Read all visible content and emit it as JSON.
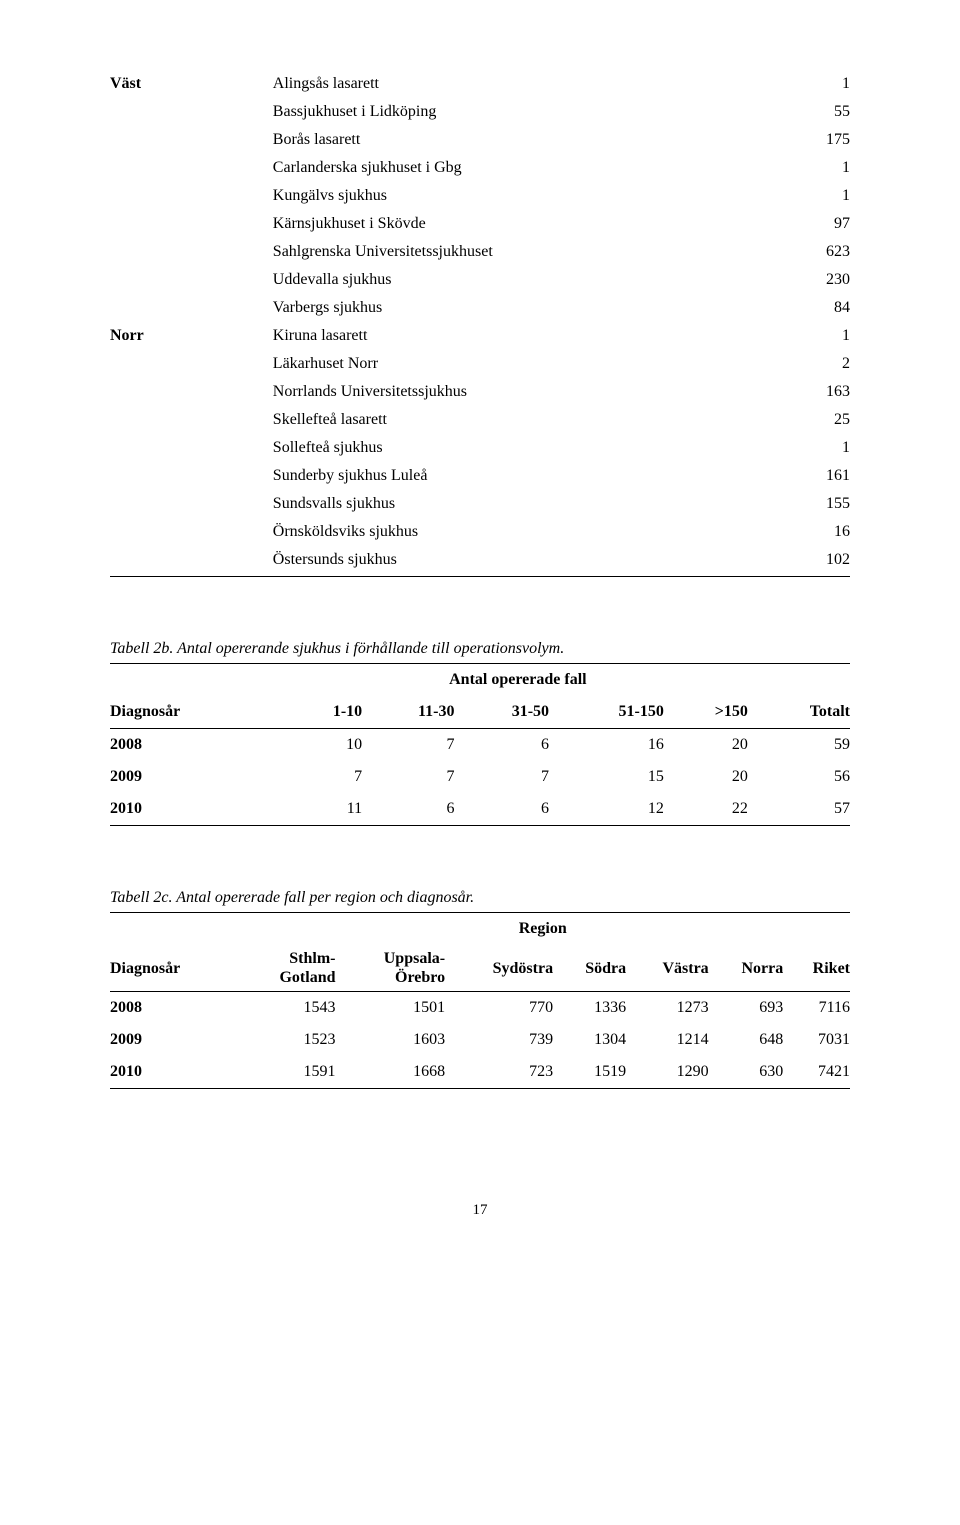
{
  "table1": {
    "regions": [
      "Väst",
      "Norr"
    ],
    "rows": [
      {
        "region": "Väst",
        "hospital": "Alingsås lasarett",
        "value": "1"
      },
      {
        "region": "",
        "hospital": "Bassjukhuset i Lidköping",
        "value": "55"
      },
      {
        "region": "",
        "hospital": "Borås lasarett",
        "value": "175"
      },
      {
        "region": "",
        "hospital": "Carlanderska sjukhuset i Gbg",
        "value": "1"
      },
      {
        "region": "",
        "hospital": "Kungälvs sjukhus",
        "value": "1"
      },
      {
        "region": "",
        "hospital": "Kärnsjukhuset i Skövde",
        "value": "97"
      },
      {
        "region": "",
        "hospital": "Sahlgrenska Universitetssjukhuset",
        "value": "623"
      },
      {
        "region": "",
        "hospital": "Uddevalla sjukhus",
        "value": "230"
      },
      {
        "region": "",
        "hospital": "Varbergs sjukhus",
        "value": "84"
      },
      {
        "region": "Norr",
        "hospital": "Kiruna lasarett",
        "value": "1"
      },
      {
        "region": "",
        "hospital": "Läkarhuset Norr",
        "value": "2"
      },
      {
        "region": "",
        "hospital": "Norrlands Universitetssjukhus",
        "value": "163"
      },
      {
        "region": "",
        "hospital": "Skellefteå lasarett",
        "value": "25"
      },
      {
        "region": "",
        "hospital": "Sollefteå sjukhus",
        "value": "1"
      },
      {
        "region": "",
        "hospital": "Sunderby sjukhus Luleå",
        "value": "161"
      },
      {
        "region": "",
        "hospital": "Sundsvalls sjukhus",
        "value": "155"
      },
      {
        "region": "",
        "hospital": "Örnsköldsviks sjukhus",
        "value": "16"
      },
      {
        "region": "",
        "hospital": "Östersunds sjukhus",
        "value": "102"
      }
    ]
  },
  "table2": {
    "caption": "Tabell 2b. Antal opererande sjukhus i förhållande till operationsvolym.",
    "group_header": "Antal opererade fall",
    "columns": [
      "Diagnosår",
      "1-10",
      "11-30",
      "31-50",
      "51-150",
      ">150",
      "Totalt"
    ],
    "rows": [
      [
        "2008",
        "10",
        "7",
        "6",
        "16",
        "20",
        "59"
      ],
      [
        "2009",
        "7",
        "7",
        "7",
        "15",
        "20",
        "56"
      ],
      [
        "2010",
        "11",
        "6",
        "6",
        "12",
        "22",
        "57"
      ]
    ]
  },
  "table3": {
    "caption": "Tabell 2c. Antal opererade fall per region och diagnosår.",
    "group_header": "Region",
    "columns": [
      "Diagnosår",
      "Sthlm-\nGotland",
      "Uppsala-\nÖrebro",
      "Sydöstra",
      "Södra",
      "Västra",
      "Norra",
      "Riket"
    ],
    "rows": [
      [
        "2008",
        "1543",
        "1501",
        "770",
        "1336",
        "1273",
        "693",
        "7116"
      ],
      [
        "2009",
        "1523",
        "1603",
        "739",
        "1304",
        "1214",
        "648",
        "7031"
      ],
      [
        "2010",
        "1591",
        "1668",
        "723",
        "1519",
        "1290",
        "630",
        "7421"
      ]
    ]
  },
  "page_number": "17"
}
